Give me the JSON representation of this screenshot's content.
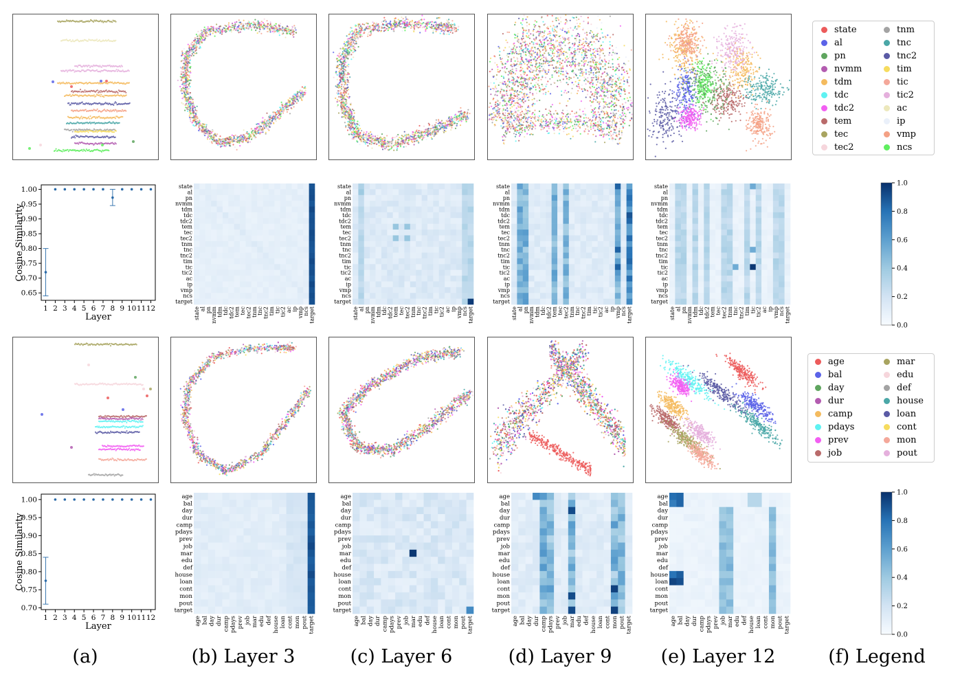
{
  "captions": [
    "(a)",
    "(b) Layer 3",
    "(c) Layer 6",
    "(d) Layer 9",
    "(e) Layer 12",
    "(f) Legend"
  ],
  "colors": {
    "state": "#ec5b5b",
    "al": "#5b63e8",
    "pn": "#5fa55f",
    "nvmm": "#b35cb0",
    "tdm": "#f4bb5f",
    "tdc": "#5ff2f2",
    "tdc2": "#f25ff2",
    "tem": "#b96a6a",
    "tec": "#a8a460",
    "tec2": "#f6d6dc",
    "tnm": "#a3a3a3",
    "tnc": "#4aa7a7",
    "tnc2": "#5a5aa5",
    "tim": "#f6dc5f",
    "tic": "#f4a89a",
    "tic2": "#e5b0dd",
    "ac": "#ece8bc",
    "ip": "#eaf0fa",
    "vmp": "#f4a185",
    "ncs": "#5fef5f",
    "age": "#ec5b5b",
    "bal": "#5b63e8",
    "day": "#5fa55f",
    "dur": "#b35cb0",
    "camp": "#f4bb5f",
    "pdays": "#5ff2f2",
    "prev": "#f25ff2",
    "job": "#b96a6a",
    "mar": "#a8a460",
    "edu": "#f6d6dc",
    "def": "#a3a3a3",
    "house": "#4aa7a7",
    "loan": "#5a5aa5",
    "cont": "#f6dc5f",
    "mon": "#f4a89a",
    "pout": "#e5b0dd"
  },
  "legend_top": {
    "col1": [
      "state",
      "al",
      "pn",
      "nvmm",
      "tdm",
      "tdc",
      "tdc2",
      "tem",
      "tec",
      "tec2"
    ],
    "col2": [
      "tnm",
      "tnc",
      "tnc2",
      "tim",
      "tic",
      "tic2",
      "ac",
      "ip",
      "vmp",
      "ncs"
    ]
  },
  "legend_bottom": {
    "col1": [
      "age",
      "bal",
      "day",
      "dur",
      "camp",
      "pdays",
      "prev",
      "job"
    ],
    "col2": [
      "mar",
      "edu",
      "def",
      "house",
      "loan",
      "cont",
      "mon",
      "pout"
    ]
  },
  "chart_data": [
    {
      "type": "line",
      "title": "",
      "xlabel": "Layer",
      "ylabel": "Cosine Similarity",
      "x": [
        1,
        2,
        3,
        4,
        5,
        6,
        7,
        8,
        9,
        10,
        11,
        12
      ],
      "y": [
        0.72,
        1.0,
        1.0,
        1.0,
        1.0,
        1.0,
        1.0,
        0.972,
        1.0,
        1.0,
        1.0,
        1.0
      ],
      "err_low": [
        0.64,
        1.0,
        1.0,
        1.0,
        1.0,
        1.0,
        1.0,
        0.945,
        1.0,
        1.0,
        1.0,
        1.0
      ],
      "err_high": [
        0.8,
        1.0,
        1.0,
        1.0,
        1.0,
        1.0,
        1.0,
        1.0,
        1.0,
        1.0,
        1.0,
        1.0
      ],
      "yticks": [
        "0.65",
        "0.70",
        "0.75",
        "0.80",
        "0.85",
        "0.90",
        "0.95",
        "1.00"
      ],
      "ylim": [
        0.625,
        1.015
      ],
      "xticks": [
        "1",
        "2",
        "3",
        "4",
        "5",
        "6",
        "7",
        "8",
        "9",
        "10",
        "11",
        "12"
      ]
    },
    {
      "type": "line",
      "title": "",
      "xlabel": "Layer",
      "ylabel": "Cosine Similarity",
      "x": [
        1,
        2,
        3,
        4,
        5,
        6,
        7,
        8,
        9,
        10,
        11,
        12
      ],
      "y": [
        0.775,
        1.0,
        1.0,
        1.0,
        1.0,
        1.0,
        1.0,
        1.0,
        1.0,
        1.0,
        1.0,
        1.0
      ],
      "err_low": [
        0.71,
        1.0,
        1.0,
        1.0,
        1.0,
        1.0,
        1.0,
        1.0,
        1.0,
        1.0,
        1.0,
        1.0
      ],
      "err_high": [
        0.84,
        1.0,
        1.0,
        1.0,
        1.0,
        1.0,
        1.0,
        1.0,
        1.0,
        1.0,
        1.0,
        1.0
      ],
      "yticks": [
        "0.70",
        "0.75",
        "0.80",
        "0.85",
        "0.90",
        "0.95",
        "1.00"
      ],
      "ylim": [
        0.695,
        1.015
      ],
      "xticks": [
        "1",
        "2",
        "3",
        "4",
        "5",
        "6",
        "7",
        "8",
        "9",
        "10",
        "11",
        "12"
      ]
    },
    {
      "type": "heatmap",
      "labels_top": [
        "state",
        "al",
        "pn",
        "nvmm",
        "tdm",
        "tdc",
        "tdc2",
        "tem",
        "tec",
        "tec2",
        "tnm",
        "tnc",
        "tnc2",
        "tim",
        "tic",
        "tic2",
        "ac",
        "ip",
        "vmp",
        "ncs",
        "target"
      ],
      "labels_bottom": [
        "age",
        "bal",
        "day",
        "dur",
        "camp",
        "pdays",
        "prev",
        "job",
        "mar",
        "edu",
        "def",
        "house",
        "loan",
        "cont",
        "mon",
        "pout",
        "target"
      ],
      "colorbar_ticks": [
        "0.0",
        "0.2",
        "0.4",
        "0.6",
        "0.8",
        "1.0"
      ],
      "vmin": 0.0,
      "vmax": 1.0
    }
  ]
}
